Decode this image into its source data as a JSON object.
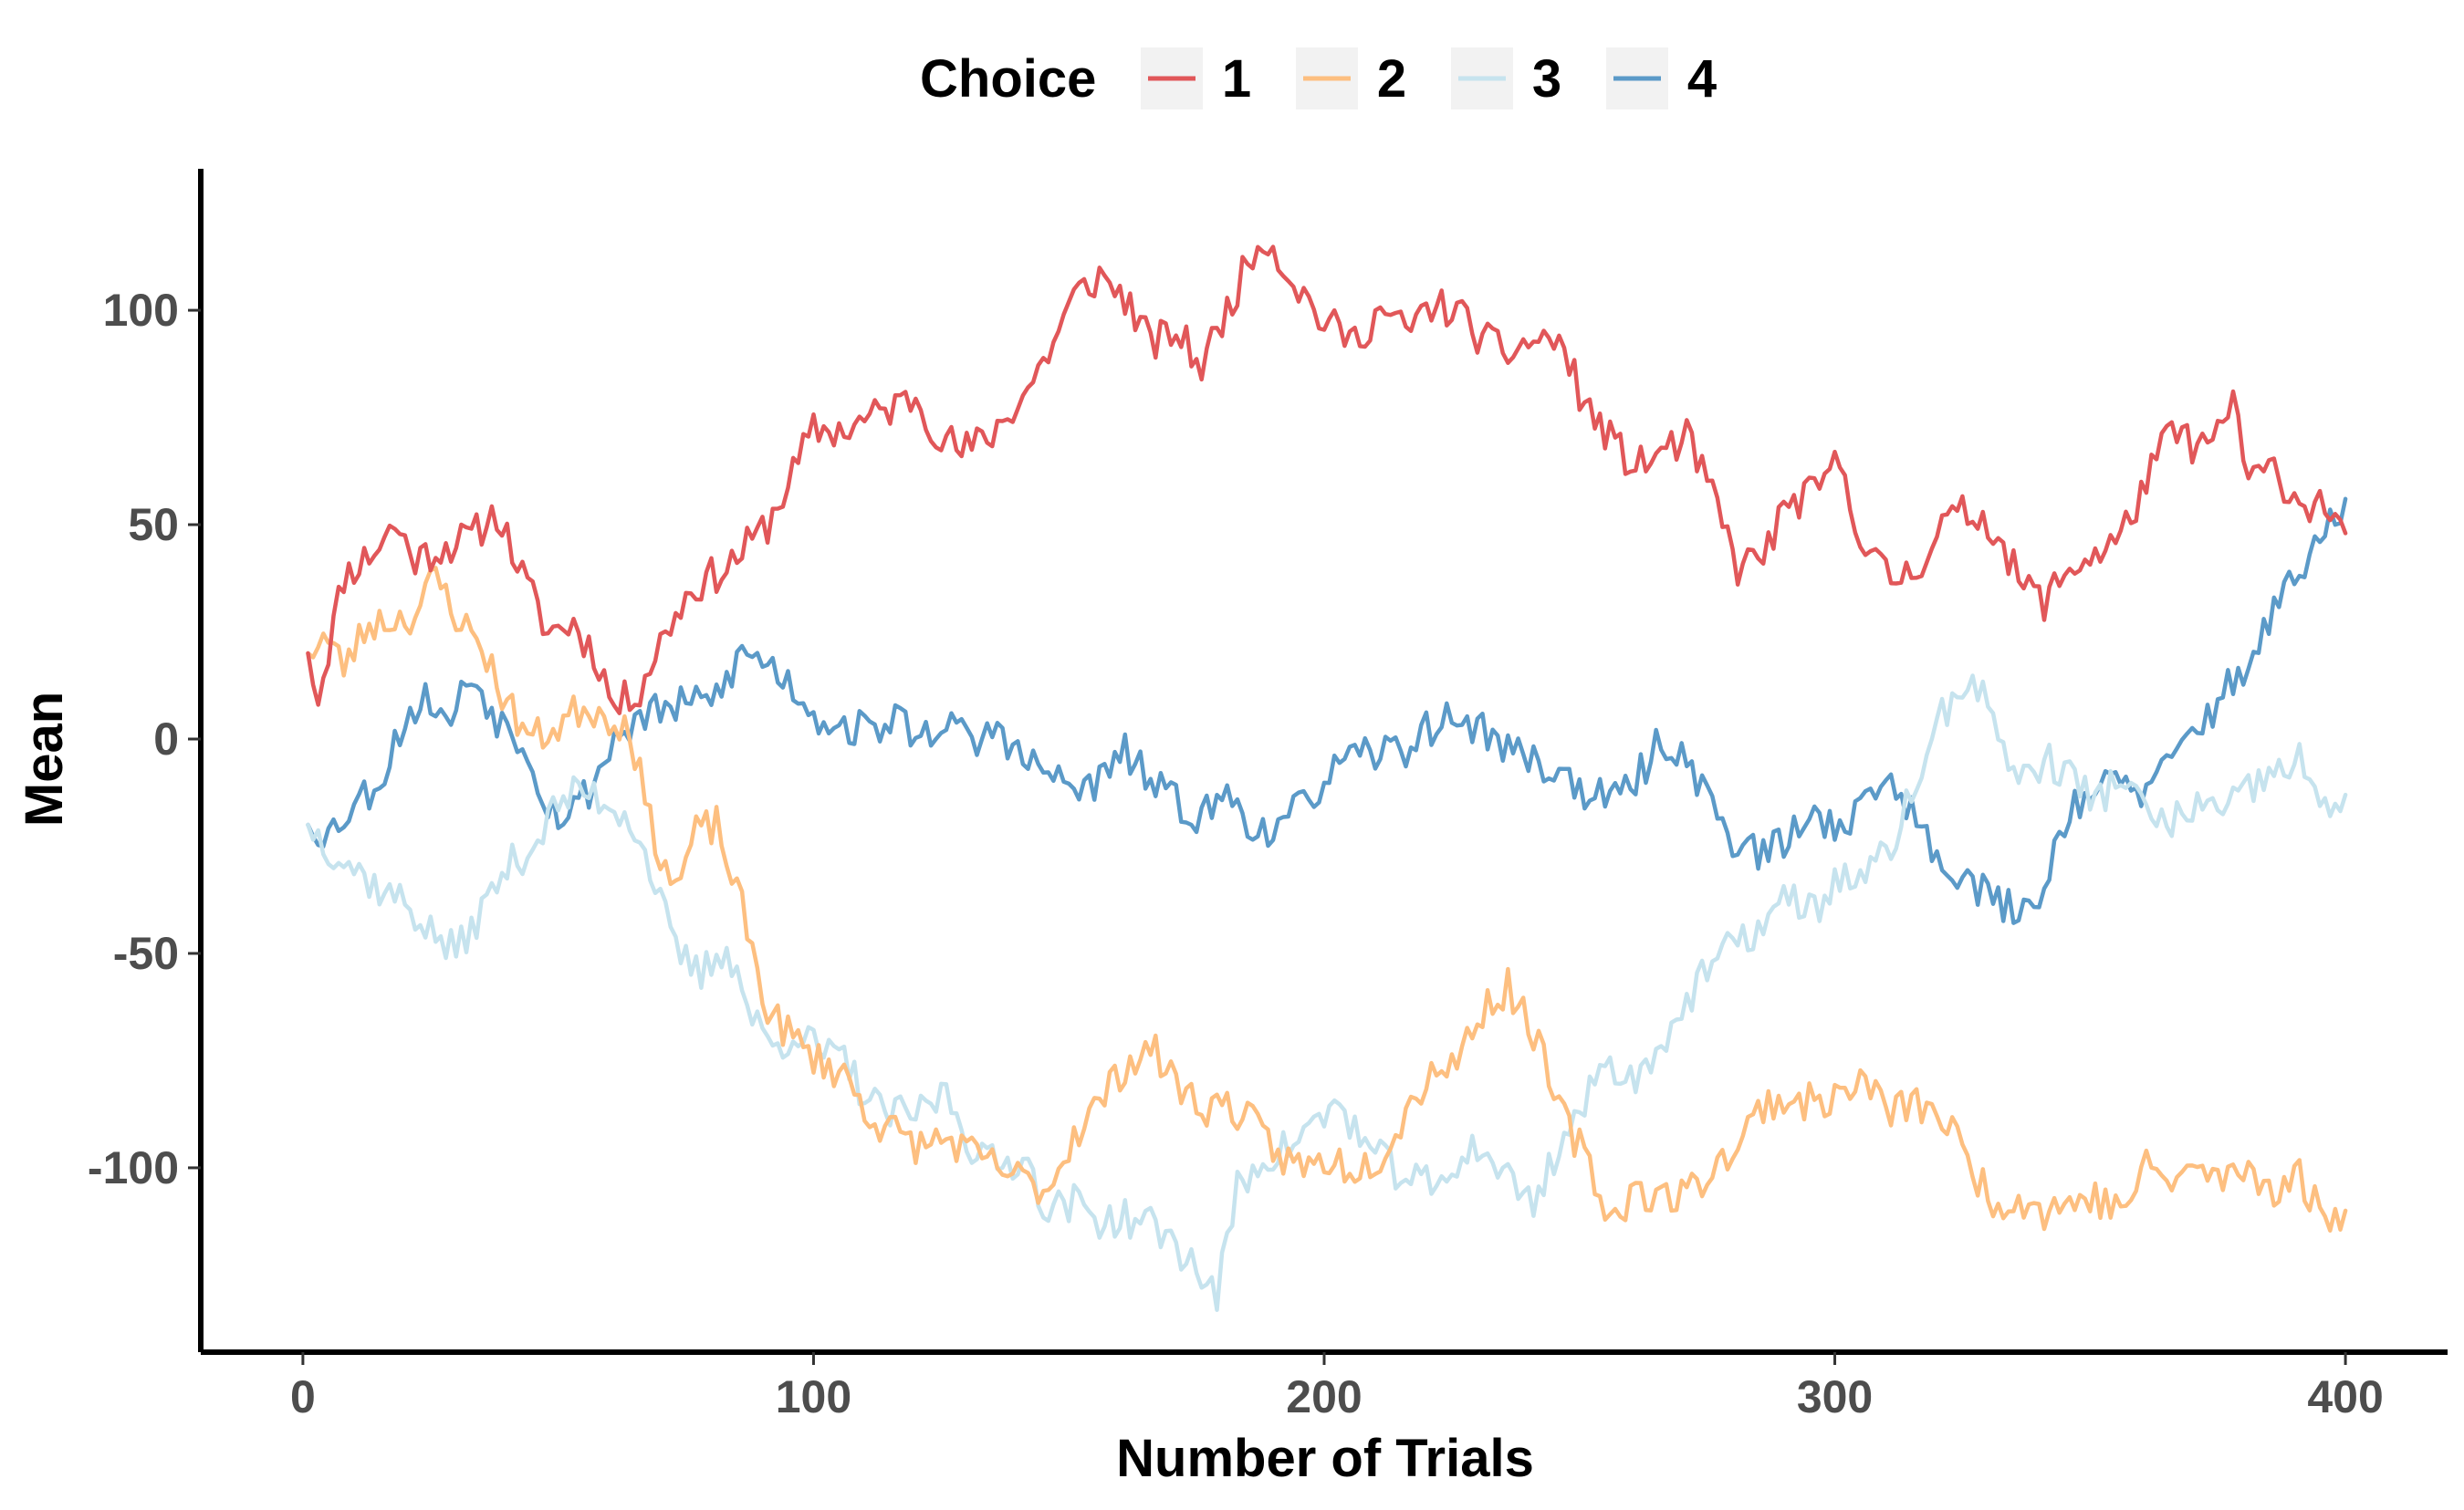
{
  "chart_data": {
    "type": "line",
    "xlabel": "Number of Trials",
    "ylabel": "Mean",
    "xlim": [
      -20,
      420
    ],
    "ylim": [
      -143,
      133
    ],
    "x_ticks": [
      0,
      100,
      200,
      300,
      400
    ],
    "y_ticks": [
      -100,
      -50,
      0,
      50,
      100
    ],
    "grid": false,
    "legend": {
      "title": "Choice",
      "position": "top"
    },
    "colors": {
      "1": "#e15759",
      "2": "#fdbf80",
      "3": "#c6e3ee",
      "4": "#5b9ac8"
    },
    "keypoints": {
      "1": [
        [
          1,
          20
        ],
        [
          3,
          10
        ],
        [
          8,
          38
        ],
        [
          14,
          44
        ],
        [
          18,
          50
        ],
        [
          22,
          42
        ],
        [
          28,
          45
        ],
        [
          33,
          47
        ],
        [
          38,
          53
        ],
        [
          43,
          38
        ],
        [
          48,
          25
        ],
        [
          53,
          27
        ],
        [
          58,
          18
        ],
        [
          61,
          7
        ],
        [
          66,
          12
        ],
        [
          71,
          25
        ],
        [
          76,
          35
        ],
        [
          83,
          40
        ],
        [
          91,
          50
        ],
        [
          96,
          62
        ],
        [
          100,
          72
        ],
        [
          106,
          72
        ],
        [
          113,
          76
        ],
        [
          120,
          80
        ],
        [
          124,
          72
        ],
        [
          129,
          67
        ],
        [
          134,
          70
        ],
        [
          141,
          80
        ],
        [
          146,
          90
        ],
        [
          151,
          103
        ],
        [
          156,
          108
        ],
        [
          161,
          103
        ],
        [
          166,
          92
        ],
        [
          171,
          95
        ],
        [
          176,
          87
        ],
        [
          182,
          103
        ],
        [
          188,
          118
        ],
        [
          194,
          107
        ],
        [
          200,
          97
        ],
        [
          206,
          93
        ],
        [
          211,
          100
        ],
        [
          216,
          95
        ],
        [
          221,
          101
        ],
        [
          226,
          100
        ],
        [
          231,
          93
        ],
        [
          236,
          90
        ],
        [
          241,
          93
        ],
        [
          246,
          93
        ],
        [
          251,
          78
        ],
        [
          256,
          70
        ],
        [
          261,
          63
        ],
        [
          266,
          67
        ],
        [
          271,
          70
        ],
        [
          276,
          57
        ],
        [
          281,
          40
        ],
        [
          286,
          43
        ],
        [
          291,
          55
        ],
        [
          296,
          57
        ],
        [
          301,
          65
        ],
        [
          306,
          44
        ],
        [
          311,
          37
        ],
        [
          316,
          40
        ],
        [
          321,
          50
        ],
        [
          326,
          53
        ],
        [
          331,
          50
        ],
        [
          336,
          37
        ],
        [
          341,
          32
        ],
        [
          346,
          40
        ],
        [
          351,
          43
        ],
        [
          356,
          47
        ],
        [
          361,
          60
        ],
        [
          366,
          72
        ],
        [
          371,
          68
        ],
        [
          375,
          70
        ],
        [
          378,
          80
        ],
        [
          381,
          60
        ],
        [
          386,
          63
        ],
        [
          391,
          55
        ],
        [
          396,
          55
        ],
        [
          400,
          48
        ]
      ],
      "2": [
        [
          1,
          20
        ],
        [
          4,
          24
        ],
        [
          8,
          17
        ],
        [
          13,
          27
        ],
        [
          18,
          28
        ],
        [
          22,
          29
        ],
        [
          26,
          38
        ],
        [
          31,
          27
        ],
        [
          35,
          22
        ],
        [
          40,
          8
        ],
        [
          45,
          0
        ],
        [
          50,
          3
        ],
        [
          55,
          8
        ],
        [
          60,
          5
        ],
        [
          64,
          3
        ],
        [
          68,
          -20
        ],
        [
          73,
          -35
        ],
        [
          77,
          -22
        ],
        [
          81,
          -20
        ],
        [
          86,
          -40
        ],
        [
          91,
          -63
        ],
        [
          96,
          -70
        ],
        [
          101,
          -75
        ],
        [
          106,
          -78
        ],
        [
          111,
          -88
        ],
        [
          116,
          -92
        ],
        [
          121,
          -95
        ],
        [
          126,
          -93
        ],
        [
          131,
          -97
        ],
        [
          136,
          -100
        ],
        [
          141,
          -103
        ],
        [
          146,
          -105
        ],
        [
          151,
          -92
        ],
        [
          156,
          -85
        ],
        [
          161,
          -76
        ],
        [
          166,
          -72
        ],
        [
          171,
          -80
        ],
        [
          176,
          -86
        ],
        [
          181,
          -85
        ],
        [
          186,
          -90
        ],
        [
          191,
          -97
        ],
        [
          196,
          -100
        ],
        [
          201,
          -98
        ],
        [
          206,
          -100
        ],
        [
          211,
          -97
        ],
        [
          216,
          -87
        ],
        [
          221,
          -77
        ],
        [
          226,
          -75
        ],
        [
          231,
          -63
        ],
        [
          236,
          -58
        ],
        [
          241,
          -68
        ],
        [
          246,
          -87
        ],
        [
          251,
          -97
        ],
        [
          256,
          -112
        ],
        [
          261,
          -105
        ],
        [
          266,
          -107
        ],
        [
          271,
          -106
        ],
        [
          276,
          -100
        ],
        [
          281,
          -95
        ],
        [
          286,
          -85
        ],
        [
          291,
          -84
        ],
        [
          296,
          -85
        ],
        [
          301,
          -83
        ],
        [
          306,
          -80
        ],
        [
          311,
          -87
        ],
        [
          316,
          -85
        ],
        [
          321,
          -88
        ],
        [
          326,
          -98
        ],
        [
          331,
          -108
        ],
        [
          336,
          -107
        ],
        [
          341,
          -110
        ],
        [
          346,
          -108
        ],
        [
          351,
          -107
        ],
        [
          356,
          -110
        ],
        [
          361,
          -100
        ],
        [
          366,
          -103
        ],
        [
          371,
          -100
        ],
        [
          376,
          -103
        ],
        [
          381,
          -100
        ],
        [
          386,
          -105
        ],
        [
          391,
          -102
        ],
        [
          396,
          -112
        ],
        [
          400,
          -110
        ]
      ],
      "3": [
        [
          1,
          -20
        ],
        [
          5,
          -25
        ],
        [
          10,
          -30
        ],
        [
          15,
          -35
        ],
        [
          20,
          -38
        ],
        [
          25,
          -45
        ],
        [
          30,
          -50
        ],
        [
          35,
          -40
        ],
        [
          40,
          -30
        ],
        [
          45,
          -25
        ],
        [
          50,
          -15
        ],
        [
          55,
          -12
        ],
        [
          60,
          -15
        ],
        [
          64,
          -18
        ],
        [
          68,
          -30
        ],
        [
          73,
          -50
        ],
        [
          78,
          -55
        ],
        [
          83,
          -48
        ],
        [
          88,
          -65
        ],
        [
          92,
          -72
        ],
        [
          97,
          -68
        ],
        [
          101,
          -73
        ],
        [
          106,
          -75
        ],
        [
          111,
          -85
        ],
        [
          116,
          -88
        ],
        [
          121,
          -87
        ],
        [
          126,
          -82
        ],
        [
          131,
          -95
        ],
        [
          136,
          -100
        ],
        [
          141,
          -97
        ],
        [
          146,
          -110
        ],
        [
          151,
          -108
        ],
        [
          156,
          -112
        ],
        [
          161,
          -112
        ],
        [
          166,
          -113
        ],
        [
          171,
          -118
        ],
        [
          176,
          -125
        ],
        [
          179,
          -130
        ],
        [
          183,
          -105
        ],
        [
          188,
          -98
        ],
        [
          193,
          -95
        ],
        [
          198,
          -90
        ],
        [
          203,
          -85
        ],
        [
          208,
          -95
        ],
        [
          213,
          -100
        ],
        [
          218,
          -103
        ],
        [
          223,
          -105
        ],
        [
          228,
          -95
        ],
        [
          233,
          -98
        ],
        [
          238,
          -105
        ],
        [
          241,
          -108
        ],
        [
          246,
          -95
        ],
        [
          251,
          -85
        ],
        [
          256,
          -75
        ],
        [
          261,
          -80
        ],
        [
          266,
          -70
        ],
        [
          271,
          -62
        ],
        [
          276,
          -52
        ],
        [
          281,
          -48
        ],
        [
          286,
          -43
        ],
        [
          291,
          -37
        ],
        [
          296,
          -40
        ],
        [
          301,
          -32
        ],
        [
          306,
          -33
        ],
        [
          311,
          -25
        ],
        [
          316,
          -10
        ],
        [
          321,
          5
        ],
        [
          326,
          15
        ],
        [
          331,
          5
        ],
        [
          336,
          -10
        ],
        [
          341,
          -5
        ],
        [
          346,
          -8
        ],
        [
          351,
          -15
        ],
        [
          356,
          -8
        ],
        [
          361,
          -18
        ],
        [
          366,
          -20
        ],
        [
          371,
          -15
        ],
        [
          376,
          -18
        ],
        [
          381,
          -12
        ],
        [
          386,
          -8
        ],
        [
          391,
          -5
        ],
        [
          396,
          -18
        ],
        [
          400,
          -13
        ]
      ],
      "4": [
        [
          1,
          -20
        ],
        [
          5,
          -22
        ],
        [
          10,
          -15
        ],
        [
          15,
          -10
        ],
        [
          20,
          5
        ],
        [
          25,
          10
        ],
        [
          28,
          3
        ],
        [
          33,
          15
        ],
        [
          38,
          5
        ],
        [
          43,
          0
        ],
        [
          48,
          -15
        ],
        [
          51,
          -18
        ],
        [
          56,
          -12
        ],
        [
          61,
          0
        ],
        [
          66,
          5
        ],
        [
          71,
          7
        ],
        [
          76,
          8
        ],
        [
          81,
          10
        ],
        [
          86,
          20
        ],
        [
          91,
          18
        ],
        [
          96,
          12
        ],
        [
          101,
          5
        ],
        [
          106,
          3
        ],
        [
          111,
          2
        ],
        [
          116,
          5
        ],
        [
          121,
          0
        ],
        [
          126,
          5
        ],
        [
          131,
          -2
        ],
        [
          136,
          3
        ],
        [
          141,
          -5
        ],
        [
          146,
          -8
        ],
        [
          151,
          -12
        ],
        [
          156,
          -10
        ],
        [
          161,
          -3
        ],
        [
          166,
          -10
        ],
        [
          171,
          -15
        ],
        [
          176,
          -18
        ],
        [
          181,
          -13
        ],
        [
          186,
          -20
        ],
        [
          191,
          -22
        ],
        [
          196,
          -15
        ],
        [
          201,
          -8
        ],
        [
          206,
          -5
        ],
        [
          211,
          -3
        ],
        [
          216,
          -2
        ],
        [
          221,
          3
        ],
        [
          226,
          5
        ],
        [
          231,
          2
        ],
        [
          236,
          -2
        ],
        [
          241,
          -5
        ],
        [
          246,
          -8
        ],
        [
          251,
          -12
        ],
        [
          256,
          -15
        ],
        [
          261,
          -10
        ],
        [
          266,
          0
        ],
        [
          271,
          -5
        ],
        [
          276,
          -15
        ],
        [
          281,
          -25
        ],
        [
          286,
          -27
        ],
        [
          291,
          -23
        ],
        [
          296,
          -18
        ],
        [
          301,
          -20
        ],
        [
          306,
          -15
        ],
        [
          311,
          -8
        ],
        [
          316,
          -20
        ],
        [
          321,
          -28
        ],
        [
          326,
          -32
        ],
        [
          331,
          -38
        ],
        [
          336,
          -40
        ],
        [
          341,
          -35
        ],
        [
          346,
          -15
        ],
        [
          351,
          -12
        ],
        [
          356,
          -10
        ],
        [
          361,
          -13
        ],
        [
          366,
          -5
        ],
        [
          371,
          3
        ],
        [
          376,
          10
        ],
        [
          381,
          18
        ],
        [
          386,
          30
        ],
        [
          391,
          38
        ],
        [
          396,
          48
        ],
        [
          400,
          56
        ]
      ]
    },
    "series": [
      {
        "name": "1",
        "color": "#e15759"
      },
      {
        "name": "2",
        "color": "#fdbf80"
      },
      {
        "name": "3",
        "color": "#c6e3ee"
      },
      {
        "name": "4",
        "color": "#5b9ac8"
      }
    ]
  }
}
